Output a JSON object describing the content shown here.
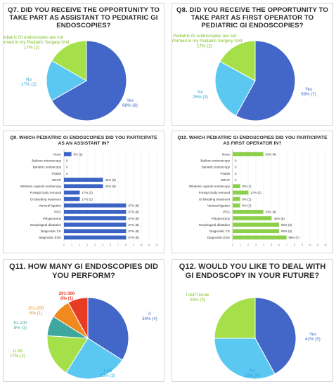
{
  "colors": {
    "blue": "#4267c9",
    "cyan": "#5bc8f2",
    "green": "#a5e04b",
    "teal": "#3fa6a0",
    "orange": "#f08a1e",
    "red": "#e83b23",
    "bar_blue": "#3a63c4",
    "bar_green": "#8ccf4a"
  },
  "chart_data": [
    {
      "type": "pie",
      "title": "Q7. DID YOU RECEIVE THE OPPORTUNITY TO TAKE PART AS ASSISTANT TO PEDIATRIC GI ENDOSCOPIES?",
      "slices": [
        {
          "label": "Yes",
          "value": 68,
          "count": 8,
          "value_text": "68% (8)",
          "color": "#4267c9"
        },
        {
          "label": "No",
          "value": 17,
          "count": 2,
          "value_text": "17% (2)",
          "color": "#5bc8f2"
        },
        {
          "label": "Pediatric GI endoscopies are not performed in my Pediatric Surgery Unit",
          "value": 17,
          "count": 2,
          "value_text": "17% (2)",
          "color": "#a5e04b"
        }
      ]
    },
    {
      "type": "pie",
      "title": "Q8. DID YOU RECEIVE THE OPPORTUNITY TO TAKE PART AS FIRST OPERATOR TO PEDIATRIC GI ENDOSCOPIES?",
      "slices": [
        {
          "label": "Yes",
          "value": 58,
          "count": 7,
          "value_text": "58% (7)",
          "color": "#4267c9"
        },
        {
          "label": "No",
          "value": 25,
          "count": 3,
          "value_text": "25% (3)",
          "color": "#5bc8f2"
        },
        {
          "label": "Pediatric GI endoscopies are not performed in my Pediatric Surgery Unit",
          "value": 17,
          "count": 2,
          "value_text": "17% (2)",
          "color": "#a5e04b"
        }
      ]
    },
    {
      "type": "bar",
      "orientation": "horizontal",
      "title": "Q9. WHICH PEDIATRIC GI ENDOSCOPIES DID YOU PARTICIPATE AS AN ASSISTANT IN?",
      "categories": [
        "None",
        "Balloon enteroscopy",
        "Bariatric endoscopy",
        "POEM",
        "ERCP",
        "Wireless capsule endoscopy",
        "Foreign body removal",
        "GI bleeding treatment",
        "Variceal ligation",
        "PEG",
        "Polypectomy",
        "Esophageal dilatation",
        "Diagnostic CS",
        "Diagnostic EDS"
      ],
      "values": [
        8,
        0,
        0,
        0,
        42,
        42,
        17,
        17,
        67,
        67,
        67,
        67,
        67,
        67
      ],
      "value_labels": [
        "8% (1)",
        "0",
        "0",
        "0",
        "42% (5)",
        "42% (5)",
        "17% (2)",
        "17% (2)",
        "67% (8)",
        "67% (8)",
        "67% (8)",
        "67% (8)",
        "67% (8)",
        "67% (8)"
      ],
      "xlim": [
        0,
        100
      ],
      "x_ticks": [
        "0",
        "1",
        "2",
        "3",
        "4",
        "5",
        "6",
        "7",
        "8",
        "9",
        "10",
        "11",
        "12"
      ],
      "color": "#3a63c4"
    },
    {
      "type": "bar",
      "orientation": "horizontal",
      "title": "Q10. WHICH PEDIATRIC GI ENDOSCOPIES DID YOU PARTICIPATE AS FIRST OPERATOR IN?",
      "categories": [
        "None",
        "Balloon enteroscopy",
        "Bariatric endoscopy",
        "POEM",
        "ERCP",
        "Wireless capsule endoscopy",
        "Foreign body removal",
        "GI bleeding treatment",
        "Variceal ligation",
        "PEG",
        "Polypectomy",
        "Esophageal dilatation",
        "Diagnostic CS",
        "Diagnostic EDS"
      ],
      "values": [
        33,
        0,
        0,
        0,
        0,
        8,
        17,
        8,
        8,
        33,
        42,
        50,
        50,
        58
      ],
      "value_labels": [
        "33% (4)",
        "0",
        "0",
        "0",
        "0",
        "8% (1)",
        "17% (2)",
        "8% (1)",
        "8% (1)",
        "33% (4)",
        "42% (5)",
        "50% (6)",
        "50% (6)",
        "58% (7)"
      ],
      "xlim": [
        0,
        100
      ],
      "x_ticks": [
        "0",
        "1",
        "2",
        "3",
        "4",
        "5",
        "6",
        "7",
        "8",
        "9",
        "10",
        "11",
        "12"
      ],
      "color": "#8ccf4a"
    },
    {
      "type": "pie",
      "title": "Q11. HOW MANY GI ENDOSCOPIES DID YOU PERFORM?",
      "slices": [
        {
          "label": "0",
          "value": 34,
          "count": 4,
          "value_text": "34% (4)",
          "color": "#4267c9"
        },
        {
          "label": "1-10",
          "value": 25,
          "count": 3,
          "value_text": "25% (3)",
          "color": "#5bc8f2"
        },
        {
          "label": "11-50",
          "value": 17,
          "count": 2,
          "value_text": "17% (2)",
          "color": "#a5e04b"
        },
        {
          "label": "51-100",
          "value": 8,
          "count": 1,
          "value_text": "8% (1)",
          "color": "#3fa6a0"
        },
        {
          "label": "101-200",
          "value": 8,
          "count": 1,
          "value_text": "8% (1)",
          "color": "#f08a1e"
        },
        {
          "label": "201-300",
          "value": 8,
          "count": 1,
          "value_text": "8% (1)",
          "color": "#e83b23"
        }
      ]
    },
    {
      "type": "pie",
      "title": "Q12. WOULD YOU LIKE TO DEAL WITH GI ENDOSCOPY IN YOUR FUTURE?",
      "slices": [
        {
          "label": "Yes",
          "value": 42,
          "count": 5,
          "value_text": "42% (5)",
          "color": "#4267c9"
        },
        {
          "label": "No",
          "value": 33,
          "count": 4,
          "value_text": "33% (4)",
          "color": "#5bc8f2"
        },
        {
          "label": "I don't know",
          "value": 25,
          "count": 3,
          "value_text": "25% (3)",
          "color": "#a5e04b"
        }
      ]
    }
  ]
}
